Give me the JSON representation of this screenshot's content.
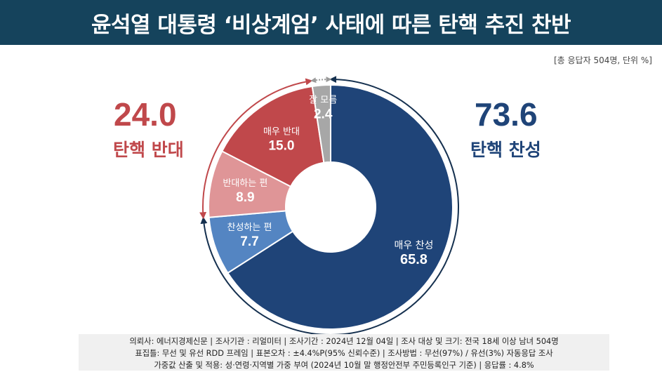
{
  "header": {
    "title": "윤석열 대통령 ‘비상계엄’ 사태에 따른 탄핵 추진 찬반"
  },
  "note": "[총 응답자 504명, 단위 %]",
  "summary": {
    "oppose": {
      "value": "24.0",
      "label": "탄핵 반대"
    },
    "support": {
      "value": "73.6",
      "label": "탄핵 찬성"
    }
  },
  "colors": {
    "strong_support": "#1f4478",
    "support": "#5485c2",
    "oppose": "#df9597",
    "strong_oppose": "#c0484b",
    "unknown": "#a7a7a7",
    "header_bg": "#15435c"
  },
  "chart_data": {
    "type": "pie",
    "donut": true,
    "slices": [
      {
        "label": "매우 찬성",
        "value": 65.8,
        "display": "65.8",
        "color": "#1f4478"
      },
      {
        "label": "찬성하는 편",
        "value": 7.7,
        "display": "7.7",
        "color": "#5485c2"
      },
      {
        "label": "반대하는 편",
        "value": 8.9,
        "display": "8.9",
        "color": "#df9597"
      },
      {
        "label": "매우 반대",
        "value": 15.0,
        "display": "15.0",
        "color": "#c0484b"
      },
      {
        "label": "잘 모름",
        "value": 2.4,
        "display": "2.4",
        "color": "#a7a7a7"
      }
    ]
  },
  "footer": {
    "line1": "의뢰사: 에너지경제신문  | 조사기관 : 리얼미터  |  조사기간 : 2024년 12월 04일 | 조사 대상 및 크기: 전국 18세 이상 남녀 504명",
    "line2": "표집틀: 무선 및 유선 RDD 프레임 | 표본오차 : ±4.4%P(95% 신뢰수준) | 조사방법 : 무선(97%) / 유선(3%) 자동응답 조사",
    "line3": "가중값 산출 및 적용: 성·연령·지역별 가중 부여 (2024년 10월 말 행정안전부 주민등록인구 기준) | 응답률 : 4.8%"
  }
}
